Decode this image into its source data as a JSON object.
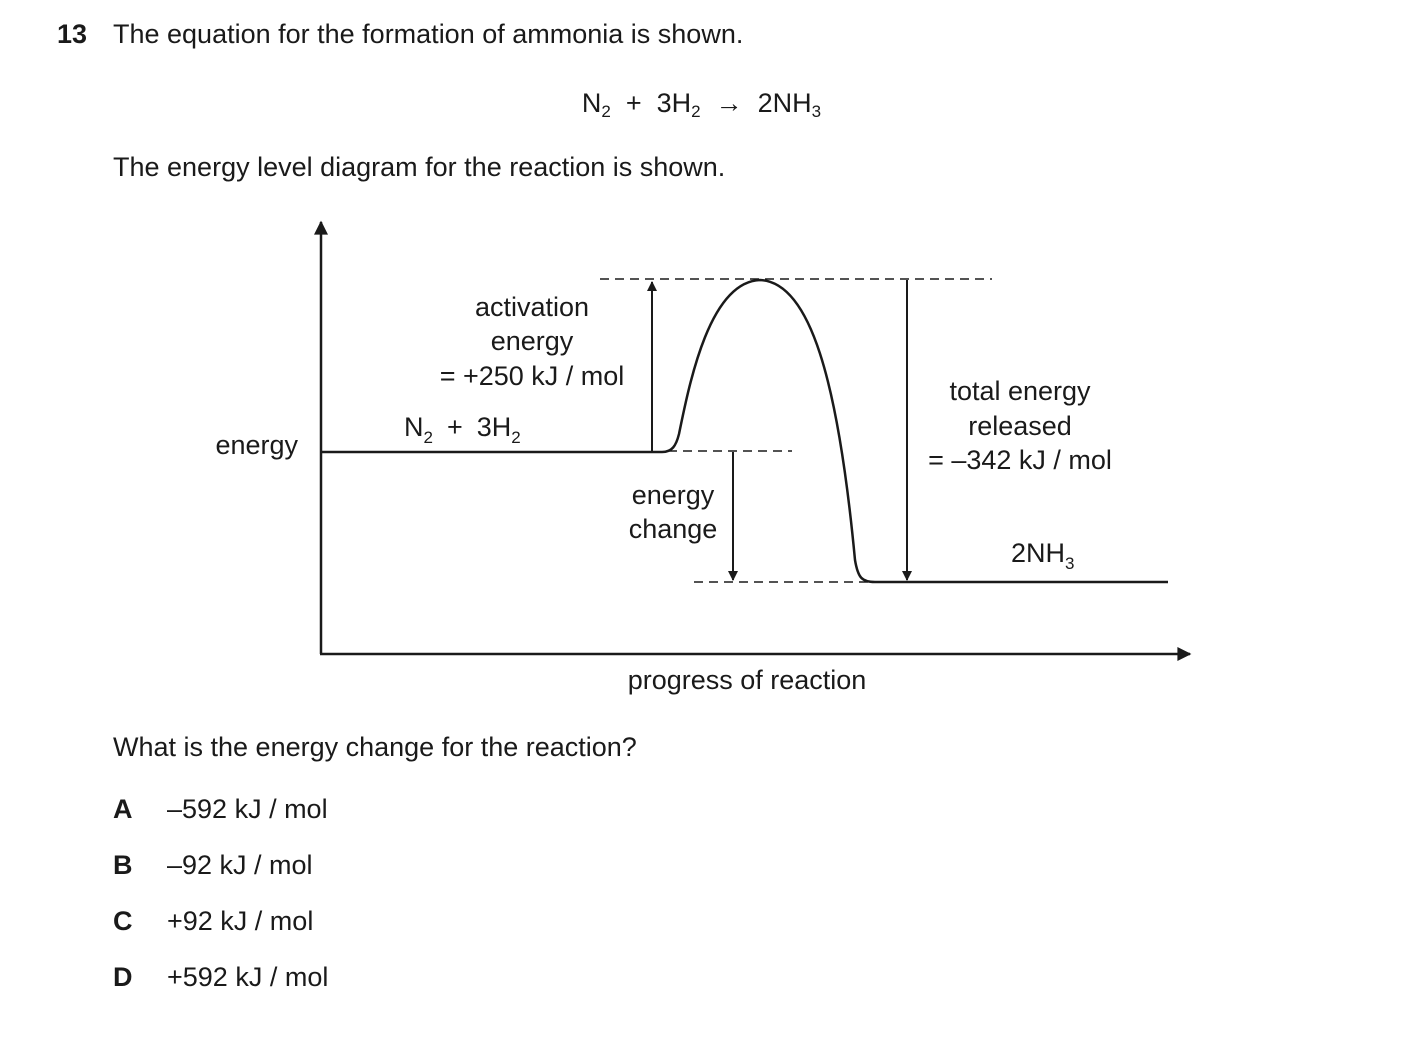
{
  "question": {
    "number": "13",
    "text": "The equation for the formation of ammonia is shown.",
    "equation": {
      "lhs_1": "N",
      "lhs_1_sub": "2",
      "plus": "+",
      "lhs_2": "3H",
      "lhs_2_sub": "2",
      "arrow": "→",
      "rhs": "2NH",
      "rhs_sub": "3"
    },
    "intro": "The energy level diagram for the reaction is shown.",
    "prompt": "What is the energy change for the reaction?"
  },
  "diagram": {
    "y_axis_label": "energy",
    "x_axis_label": "progress of reaction",
    "reactants": {
      "text": "N",
      "sub1": "2",
      "plus": "+",
      "text2": "3H",
      "sub2": "2"
    },
    "products": {
      "text": "2NH",
      "sub": "3"
    },
    "activation": {
      "line1": "activation",
      "line2": "energy",
      "line3": "= +250 kJ / mol"
    },
    "energy_change": {
      "line1": "energy",
      "line2": "change"
    },
    "total_released": {
      "line1": "total energy",
      "line2": "released",
      "line3": "= –342 kJ / mol"
    }
  },
  "options": [
    {
      "letter": "A",
      "value": "–592 kJ / mol"
    },
    {
      "letter": "B",
      "value": "–92 kJ / mol"
    },
    {
      "letter": "C",
      "value": "+92 kJ / mol"
    },
    {
      "letter": "D",
      "value": "+592 kJ / mol"
    }
  ]
}
